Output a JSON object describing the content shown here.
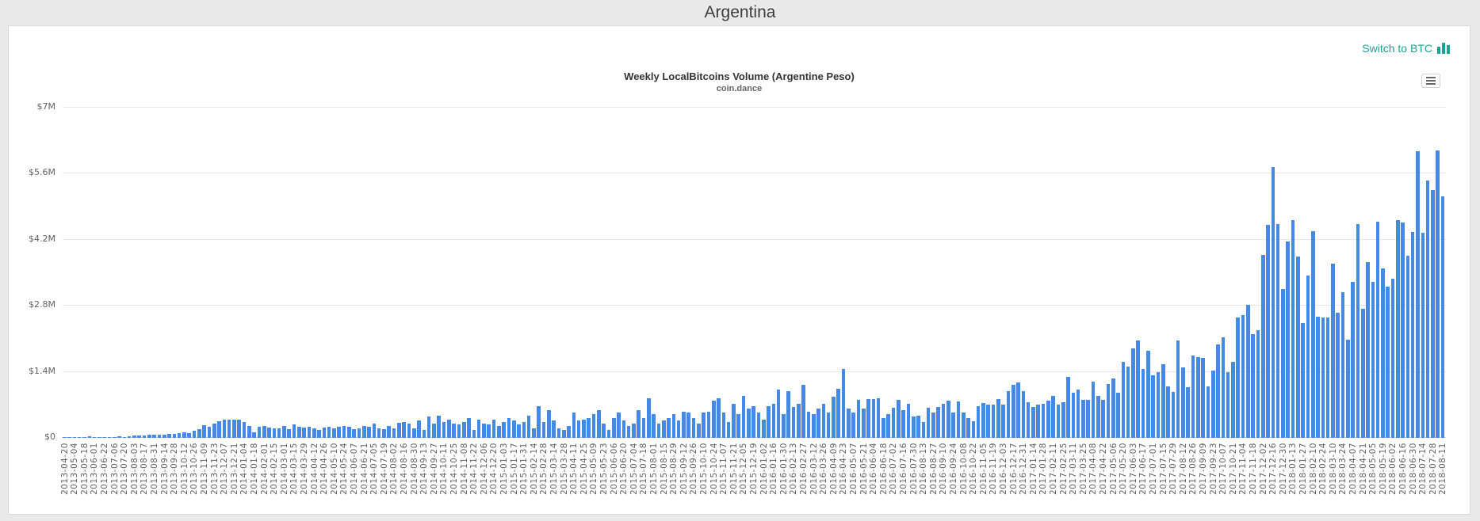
{
  "page": {
    "title": "Argentina"
  },
  "toolbar": {
    "switch_label": "Switch to BTC",
    "switch_icon": "bar-chart-icon",
    "menu_icon": "hamburger-menu-icon"
  },
  "colors": {
    "accent_teal": "#18a394",
    "bar_blue": "#4589e6",
    "page_background": "#e9e9e9",
    "grid": "#e6e6e6"
  },
  "chart_data": {
    "type": "bar",
    "title": "Weekly LocalBitcoins Volume (Argentine Peso)",
    "subtitle": "coin.dance",
    "ylabel": "",
    "xlabel": "",
    "ylim": [
      0,
      7000000
    ],
    "grid": true,
    "legend": "none",
    "y_ticks": [
      "$0",
      "$1.4M",
      "$2.8M",
      "$4.2M",
      "$5.6M",
      "$7M"
    ],
    "x_tick_labels": [
      "2013-04-20",
      "2013-05-04",
      "2013-05-18",
      "2013-06-01",
      "2013-06-22",
      "2013-07-06",
      "2013-07-20",
      "2013-08-03",
      "2013-08-17",
      "2013-08-31",
      "2013-09-14",
      "2013-09-28",
      "2013-10-12",
      "2013-10-26",
      "2013-11-09",
      "2013-11-23",
      "2013-12-07",
      "2013-12-21",
      "2014-01-04",
      "2014-01-18",
      "2014-02-01",
      "2014-02-15",
      "2014-03-01",
      "2014-03-15",
      "2014-03-29",
      "2014-04-12",
      "2014-04-26",
      "2014-05-10",
      "2014-05-24",
      "2014-06-07",
      "2014-06-21",
      "2014-07-05",
      "2014-07-19",
      "2014-08-02",
      "2014-08-16",
      "2014-08-30",
      "2014-09-13",
      "2014-09-27",
      "2014-10-11",
      "2014-10-25",
      "2014-11-08",
      "2014-11-22",
      "2014-12-06",
      "2014-12-20",
      "2015-01-03",
      "2015-01-17",
      "2015-01-31",
      "2015-02-14",
      "2015-02-28",
      "2015-03-14",
      "2015-03-28",
      "2015-04-11",
      "2015-04-25",
      "2015-05-09",
      "2015-05-23",
      "2015-06-06",
      "2015-06-20",
      "2015-07-04",
      "2015-07-18",
      "2015-08-01",
      "2015-08-15",
      "2015-08-29",
      "2015-09-12",
      "2015-09-26",
      "2015-10-10",
      "2015-10-24",
      "2015-11-07",
      "2015-11-21",
      "2015-12-05",
      "2015-12-19",
      "2016-01-02",
      "2016-01-16",
      "2016-01-30",
      "2016-02-13",
      "2016-02-27",
      "2016-03-12",
      "2016-03-26",
      "2016-04-09",
      "2016-04-23",
      "2016-05-07",
      "2016-05-21",
      "2016-06-04",
      "2016-06-18",
      "2016-07-02",
      "2016-07-16",
      "2016-07-30",
      "2016-08-13",
      "2016-08-27",
      "2016-09-10",
      "2016-09-24",
      "2016-10-08",
      "2016-10-22",
      "2016-11-05",
      "2016-11-19",
      "2016-12-03",
      "2016-12-17",
      "2016-12-31",
      "2017-01-14",
      "2017-01-28",
      "2017-02-11",
      "2017-02-25",
      "2017-03-11",
      "2017-03-25",
      "2017-04-08",
      "2017-04-22",
      "2017-05-06",
      "2017-05-20",
      "2017-06-03",
      "2017-06-17",
      "2017-07-01",
      "2017-07-15",
      "2017-07-29",
      "2017-08-12",
      "2017-08-26",
      "2017-09-09",
      "2017-09-23",
      "2017-10-07",
      "2017-10-21",
      "2017-11-04",
      "2017-11-18",
      "2017-12-02",
      "2017-12-16",
      "2017-12-30",
      "2018-01-13",
      "2018-01-27",
      "2018-02-10",
      "2018-02-24",
      "2018-03-10",
      "2018-03-24",
      "2018-04-07",
      "2018-04-21",
      "2018-05-05",
      "2018-05-19",
      "2018-06-02",
      "2018-06-16",
      "2018-06-30",
      "2018-07-14",
      "2018-07-28",
      "2018-08-11"
    ],
    "label_every_n_bars": 2,
    "values_millions": [
      0.008,
      0.006,
      0.014,
      0.01,
      0.022,
      0.028,
      0.012,
      0.018,
      0.016,
      0.025,
      0.02,
      0.03,
      0.026,
      0.034,
      0.045,
      0.055,
      0.05,
      0.065,
      0.06,
      0.075,
      0.07,
      0.085,
      0.08,
      0.095,
      0.11,
      0.1,
      0.16,
      0.185,
      0.27,
      0.235,
      0.3,
      0.36,
      0.385,
      0.39,
      0.395,
      0.39,
      0.33,
      0.25,
      0.12,
      0.23,
      0.26,
      0.215,
      0.195,
      0.2,
      0.25,
      0.185,
      0.285,
      0.235,
      0.215,
      0.24,
      0.2,
      0.17,
      0.215,
      0.235,
      0.2,
      0.23,
      0.25,
      0.23,
      0.185,
      0.21,
      0.25,
      0.235,
      0.3,
      0.2,
      0.185,
      0.25,
      0.2,
      0.32,
      0.34,
      0.31,
      0.21,
      0.365,
      0.17,
      0.45,
      0.31,
      0.475,
      0.335,
      0.39,
      0.31,
      0.28,
      0.335,
      0.42,
      0.17,
      0.39,
      0.31,
      0.28,
      0.39,
      0.25,
      0.335,
      0.42,
      0.365,
      0.28,
      0.335,
      0.475,
      0.195,
      0.67,
      0.335,
      0.59,
      0.365,
      0.195,
      0.17,
      0.25,
      0.53,
      0.365,
      0.39,
      0.42,
      0.505,
      0.59,
      0.31,
      0.17,
      0.42,
      0.53,
      0.365,
      0.25,
      0.31,
      0.59,
      0.42,
      0.84,
      0.505,
      0.31,
      0.365,
      0.42,
      0.505,
      0.365,
      0.56,
      0.53,
      0.42,
      0.31,
      0.53,
      0.56,
      0.785,
      0.84,
      0.53,
      0.335,
      0.73,
      0.505,
      0.895,
      0.615,
      0.67,
      0.53,
      0.39,
      0.67,
      0.73,
      1.02,
      0.505,
      0.99,
      0.66,
      0.73,
      1.12,
      0.56,
      0.505,
      0.63,
      0.73,
      0.53,
      0.87,
      1.04,
      1.46,
      0.63,
      0.545,
      0.81,
      0.615,
      0.83,
      0.825,
      0.84,
      0.42,
      0.505,
      0.645,
      0.8,
      0.59,
      0.73,
      0.45,
      0.465,
      0.335,
      0.645,
      0.53,
      0.655,
      0.73,
      0.785,
      0.53,
      0.765,
      0.545,
      0.42,
      0.345,
      0.67,
      0.74,
      0.7,
      0.7,
      0.83,
      0.7,
      0.99,
      1.12,
      1.18,
      0.99,
      0.755,
      0.66,
      0.7,
      0.73,
      0.785,
      0.895,
      0.7,
      0.755,
      1.3,
      0.95,
      1.02,
      0.81,
      0.81,
      1.19,
      0.895,
      0.81,
      1.15,
      1.26,
      0.95,
      1.62,
      1.51,
      1.9,
      2.07,
      1.46,
      1.85,
      1.32,
      1.4,
      1.57,
      1.09,
      0.98,
      2.07,
      1.5,
      1.08,
      1.75,
      1.72,
      1.7,
      1.09,
      1.42,
      1.99,
      2.14,
      1.4,
      1.62,
      2.55,
      2.6,
      2.82,
      2.2,
      2.29,
      3.88,
      4.51,
      5.75,
      4.53,
      3.16,
      4.17,
      4.61,
      3.84,
      2.43,
      3.44,
      4.39,
      2.57,
      2.55,
      2.56,
      3.7,
      2.65,
      3.09,
      2.09,
      3.3,
      4.53,
      2.74,
      3.72,
      3.3,
      4.59,
      3.6,
      3.21,
      3.37,
      4.61,
      4.57,
      3.86,
      4.37,
      6.07,
      4.35,
      5.45,
      5.26,
      6.1,
      5.12
    ]
  }
}
